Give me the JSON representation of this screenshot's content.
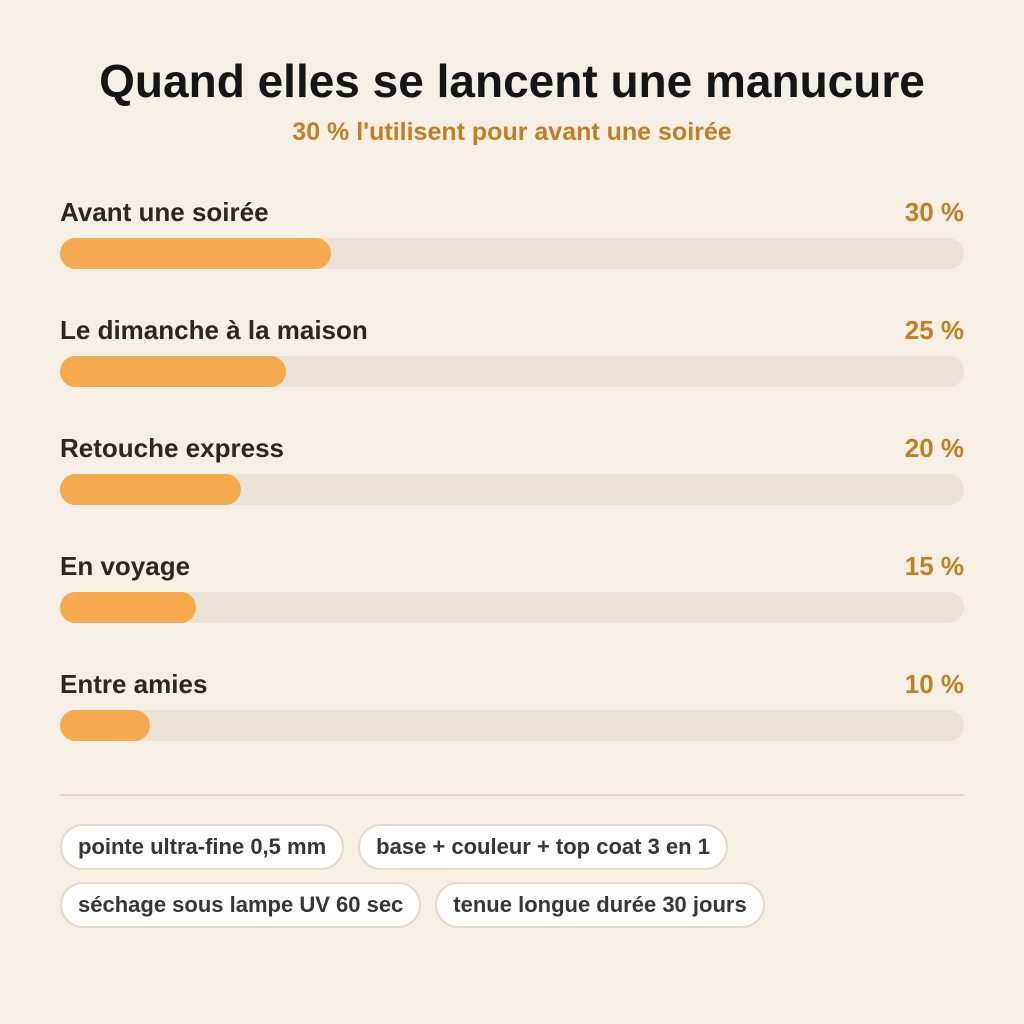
{
  "chart_data": {
    "type": "bar",
    "orientation": "horizontal",
    "title": "Quand elles se lancent une manucure",
    "subtitle": "30 % l'utilisent pour avant une soirée",
    "categories": [
      "Avant une soirée",
      "Le dimanche à la maison",
      "Retouche express",
      "En voyage",
      "Entre amies"
    ],
    "values": [
      30,
      25,
      20,
      15,
      10
    ],
    "value_labels": [
      "30 %",
      "25 %",
      "20 %",
      "15 %",
      "10 %"
    ],
    "xlim": [
      0,
      100
    ],
    "grid": false
  },
  "tags": [
    [
      "pointe ultra-fine 0,5 mm",
      "base + couleur + top coat 3 en 1"
    ],
    [
      "séchage sous lampe UV 60 sec",
      "tenue longue durée 30 jours"
    ]
  ],
  "colors": {
    "background": "#f6efe5",
    "bar_fill": "#f5aa4f",
    "bar_track": "#ebe2d6",
    "accent_text": "#c27f22"
  }
}
